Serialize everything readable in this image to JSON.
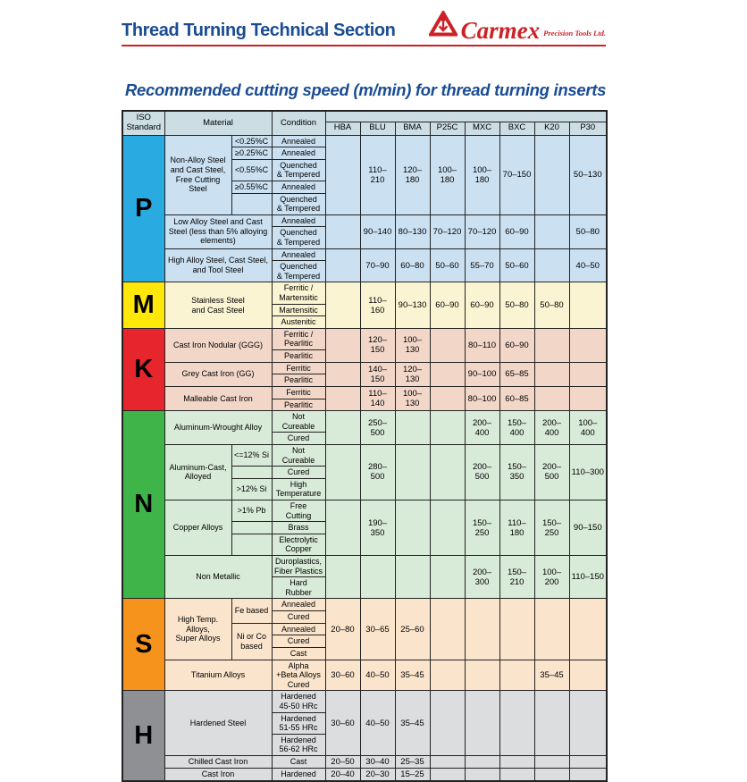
{
  "header": {
    "title": "Thread Turning Technical Section",
    "brand_name": "Carmex",
    "brand_tagline": "Precision Tools Ltd."
  },
  "subtitle": "Recommended cutting speed (m/min) for thread turning inserts",
  "icons": {
    "logo": "carmex-triangle-anchor-logo"
  },
  "colors": {
    "navy": "#1A4C93",
    "red": "#CE2127",
    "header_bg": "#CCDEE4",
    "border": "#222222",
    "sections": {
      "P": {
        "letter_bg": "#29ABE2",
        "row_bg": "#CBE1F2"
      },
      "M": {
        "letter_bg": "#FFE70A",
        "row_bg": "#FBF4D2"
      },
      "K": {
        "letter_bg": "#E6252C",
        "row_bg": "#F2D7C9"
      },
      "N": {
        "letter_bg": "#3FB549",
        "row_bg": "#D8EAD8"
      },
      "S": {
        "letter_bg": "#F6931D",
        "row_bg": "#FBE4CC"
      },
      "H": {
        "letter_bg": "#8E9093",
        "row_bg": "#DCDDDF"
      }
    }
  },
  "table": {
    "headers": {
      "iso": "ISO\nStandard",
      "material": "Material",
      "condition": "Condition"
    },
    "grade_columns": [
      "HBA",
      "BLU",
      "BMA",
      "P25C",
      "MXC",
      "BXC",
      "K20",
      "P30"
    ],
    "sections": [
      {
        "letter": "P",
        "groups": [
          {
            "material": "Non-Alloy Steel\nand Cast Steel,\nFree Cutting Steel",
            "specs": [
              {
                "text": "<0.25%C",
                "rows": 1
              },
              {
                "text": "≥0.25%C",
                "rows": 1
              },
              {
                "text": "<0.55%C",
                "rows": 1
              },
              {
                "text": "≥0.55%C",
                "rows": 1
              },
              {
                "text": "",
                "rows": 1
              }
            ],
            "conditions": [
              "Annealed",
              "Annealed",
              "Quenched\n& Tempered",
              "Annealed",
              "Quenched\n& Tempered"
            ],
            "values": [
              "",
              "110–210",
              "120–180",
              "100–180",
              "100–180",
              "70–150",
              "",
              "50–130"
            ]
          },
          {
            "material": "Low Alloy Steel and Cast\nSteel (less than 5% alloying\nelements)",
            "specs": null,
            "conditions": [
              "Annealed",
              "Quenched\n& Tempered"
            ],
            "values": [
              "",
              "90–140",
              "80–130",
              "70–120",
              "70–120",
              "60–90",
              "",
              "50–80"
            ]
          },
          {
            "material": "High Alloy Steel, Cast Steel,\nand Tool Steel",
            "specs": null,
            "conditions": [
              "Annealed",
              "Quenched\n& Tempered"
            ],
            "values": [
              "",
              "70–90",
              "60–80",
              "50–60",
              "55–70",
              "50–60",
              "",
              "40–50"
            ]
          }
        ]
      },
      {
        "letter": "M",
        "groups": [
          {
            "material": "Stainless Steel\nand Cast Steel",
            "specs": null,
            "conditions": [
              "Ferritic /\nMartensitic",
              "Martensitic",
              "Austenitic"
            ],
            "values": [
              "",
              "110–160",
              "90–130",
              "60–90",
              "60–90",
              "50–80",
              "50–80",
              ""
            ]
          }
        ]
      },
      {
        "letter": "K",
        "groups": [
          {
            "material": "Cast Iron Nodular (GGG)",
            "specs": null,
            "conditions": [
              "Ferritic /\nPearlitic",
              "Pearlitic"
            ],
            "values": [
              "",
              "120–150",
              "100–130",
              "",
              "80–110",
              "60–90",
              "",
              ""
            ]
          },
          {
            "material": "Grey Cast Iron (GG)",
            "specs": null,
            "conditions": [
              "Ferritic",
              "Pearlitic"
            ],
            "values": [
              "",
              "140–150",
              "120–130",
              "",
              "90–100",
              "65–85",
              "",
              ""
            ]
          },
          {
            "material": "Malleable Cast Iron",
            "specs": null,
            "conditions": [
              "Ferritic",
              "Pearlitic"
            ],
            "values": [
              "",
              "110–140",
              "100–130",
              "",
              "80–100",
              "60–85",
              "",
              ""
            ]
          }
        ]
      },
      {
        "letter": "N",
        "groups": [
          {
            "material": "Aluminum-Wrought Alloy",
            "specs": null,
            "conditions": [
              "Not\nCureable",
              "Cured"
            ],
            "values": [
              "",
              "250–500",
              "",
              "",
              "200–400",
              "150–400",
              "200–400",
              "100–400"
            ]
          },
          {
            "material": "Aluminum-Cast,\nAlloyed",
            "specs": [
              {
                "text": "<=12% Si",
                "rows": 1
              },
              {
                "text": "",
                "rows": 1
              },
              {
                "text": ">12% Si",
                "rows": 1
              }
            ],
            "conditions": [
              "Not\nCureable",
              "Cured",
              "High\nTemperature"
            ],
            "values": [
              "",
              "280–500",
              "",
              "",
              "200–500",
              "150–350",
              "200–500",
              "110–300"
            ]
          },
          {
            "material": "Copper Alloys",
            "specs": [
              {
                "text": ">1% Pb",
                "rows": 1
              },
              {
                "text": "",
                "rows": 1
              },
              {
                "text": "",
                "rows": 1
              }
            ],
            "conditions": [
              "Free\nCutting",
              "Brass",
              "Electrolytic\nCopper"
            ],
            "values": [
              "",
              "190–350",
              "",
              "",
              "150–250",
              "110–180",
              "150–250",
              "90–150"
            ]
          },
          {
            "material": "Non Metallic",
            "specs": null,
            "conditions": [
              "Duroplastics,\nFiber Plastics",
              "Hard\nRubber"
            ],
            "values": [
              "",
              "",
              "",
              "",
              "200–300",
              "150–210",
              "100–200",
              "110–150"
            ]
          }
        ]
      },
      {
        "letter": "S",
        "groups": [
          {
            "material": "High Temp. Alloys,\nSuper Alloys",
            "specs": [
              {
                "text": "Fe based",
                "rows": 2
              },
              {
                "text": "Ni or Co\nbased",
                "rows": 3
              }
            ],
            "conditions": [
              "Annealed",
              "Cured",
              "Annealed",
              "Cured",
              "Cast"
            ],
            "values": [
              "20–80",
              "30–65",
              "25–60",
              "",
              "",
              "",
              "",
              ""
            ]
          },
          {
            "material": "Titanium Alloys",
            "specs": null,
            "conditions": [
              "Alpha\n+Beta Alloys\nCured"
            ],
            "values": [
              "30–60",
              "40–50",
              "35–45",
              "",
              "",
              "",
              "35–45",
              ""
            ]
          }
        ]
      },
      {
        "letter": "H",
        "groups": [
          {
            "material": "Hardened Steel",
            "specs": null,
            "conditions": [
              "Hardened\n45-50 HRc",
              "Hardened\n51-55 HRc",
              "Hardened\n56-62 HRc"
            ],
            "values": [
              "30–60",
              "40–50",
              "35–45",
              "",
              "",
              "",
              "",
              ""
            ]
          },
          {
            "material": "Chilled Cast Iron",
            "specs": null,
            "conditions": [
              "Cast"
            ],
            "values": [
              "20–50",
              "30–40",
              "25–35",
              "",
              "",
              "",
              "",
              ""
            ]
          },
          {
            "material": "Cast Iron",
            "specs": null,
            "conditions": [
              "Hardened"
            ],
            "values": [
              "20–40",
              "20–30",
              "15–25",
              "",
              "",
              "",
              "",
              ""
            ]
          }
        ]
      }
    ]
  }
}
